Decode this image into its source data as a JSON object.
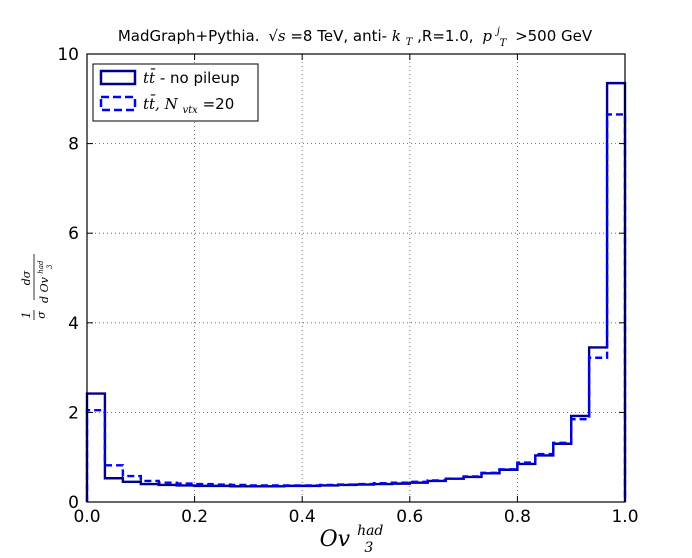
{
  "chart_data": {
    "type": "line",
    "title": {
      "prefix": "MadGraph+Pythia.",
      "sqrt_s": "√s",
      "energy": "=8 TeV, anti-",
      "kt": "k",
      "kt_sub": "T",
      "radius": ",R=1.0,",
      "pt": "p",
      "pt_sub": "T",
      "pt_sup": "j",
      "cut": ">500 GeV"
    },
    "xlabel": {
      "main": "Ov",
      "sub": "3",
      "sup": "had"
    },
    "ylabel": {
      "frac1_num": "1",
      "frac1_den": "σ",
      "frac2_num": "dσ",
      "frac2_den": "d Ov",
      "frac2_den_sub": "3",
      "frac2_den_sup": "had"
    },
    "xlim": [
      0.0,
      1.0
    ],
    "ylim": [
      0,
      10
    ],
    "x_ticks": [
      "0.0",
      "0.2",
      "0.4",
      "0.6",
      "0.8",
      "1.0"
    ],
    "y_ticks": [
      "0",
      "2",
      "4",
      "6",
      "8",
      "10"
    ],
    "grid": true,
    "legend_position": "top-left",
    "bin_edges": [
      0.0,
      0.0333,
      0.0667,
      0.1,
      0.1333,
      0.1667,
      0.2,
      0.2333,
      0.2667,
      0.3,
      0.3333,
      0.3667,
      0.4,
      0.4333,
      0.4667,
      0.5,
      0.5333,
      0.5667,
      0.6,
      0.6333,
      0.6667,
      0.7,
      0.7333,
      0.7667,
      0.8,
      0.8333,
      0.8667,
      0.9,
      0.9333,
      0.9667,
      1.0
    ],
    "series": [
      {
        "name": "no pileup",
        "legend_math": "tt̄",
        "legend_suffix": " - no pileup",
        "style": "solid",
        "color": "#00008b",
        "values": [
          2.42,
          0.53,
          0.45,
          0.4,
          0.38,
          0.37,
          0.36,
          0.36,
          0.35,
          0.35,
          0.35,
          0.36,
          0.36,
          0.37,
          0.38,
          0.39,
          0.4,
          0.41,
          0.43,
          0.47,
          0.52,
          0.56,
          0.64,
          0.72,
          0.85,
          1.04,
          1.3,
          1.92,
          3.45,
          9.35
        ]
      },
      {
        "name": "N_vtx=20",
        "legend_math": "tt̄, N",
        "legend_sub": "vtx",
        "legend_suffix": "=20",
        "style": "dashed",
        "color": "#0000ff",
        "values": [
          2.05,
          0.82,
          0.58,
          0.47,
          0.43,
          0.41,
          0.4,
          0.39,
          0.38,
          0.37,
          0.37,
          0.37,
          0.37,
          0.38,
          0.39,
          0.4,
          0.42,
          0.43,
          0.45,
          0.48,
          0.52,
          0.57,
          0.65,
          0.73,
          0.88,
          1.07,
          1.32,
          1.85,
          3.22,
          8.65
        ]
      }
    ]
  }
}
